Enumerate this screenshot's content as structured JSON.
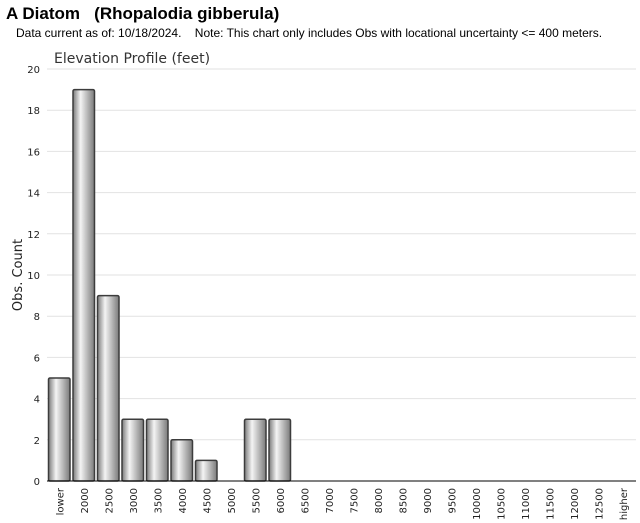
{
  "header": {
    "title": "A Diatom   (Rhopalodia gibberula)",
    "subtitle": "Data current as of: 10/18/2024.    Note: This chart only includes Obs with locational uncertainty <= 400 meters."
  },
  "chart_data": {
    "type": "bar",
    "title": "Elevation Profile (feet)",
    "xlabel": "",
    "ylabel": "Obs. Count",
    "ylim": [
      0,
      20
    ],
    "yticks": [
      0,
      2,
      4,
      6,
      8,
      10,
      12,
      14,
      16,
      18,
      20
    ],
    "grid": true,
    "legend": "none",
    "categories": [
      "lower",
      "2000",
      "2500",
      "3000",
      "3500",
      "4000",
      "4500",
      "5000",
      "5500",
      "6000",
      "6500",
      "7000",
      "7500",
      "8000",
      "8500",
      "9000",
      "9500",
      "10000",
      "10500",
      "11000",
      "11500",
      "12000",
      "12500",
      "higher"
    ],
    "values": [
      5,
      19,
      9,
      3,
      3,
      2,
      1,
      0,
      3,
      3,
      0,
      0,
      0,
      0,
      0,
      0,
      0,
      0,
      0,
      0,
      0,
      0,
      0,
      0
    ],
    "colors": {
      "bar_light": "#f4f4f4",
      "bar_dark": "#7a7a7a",
      "bar_stroke": "#3c3c3c",
      "grid": "#e2e2e2",
      "axis": "#000000"
    }
  }
}
